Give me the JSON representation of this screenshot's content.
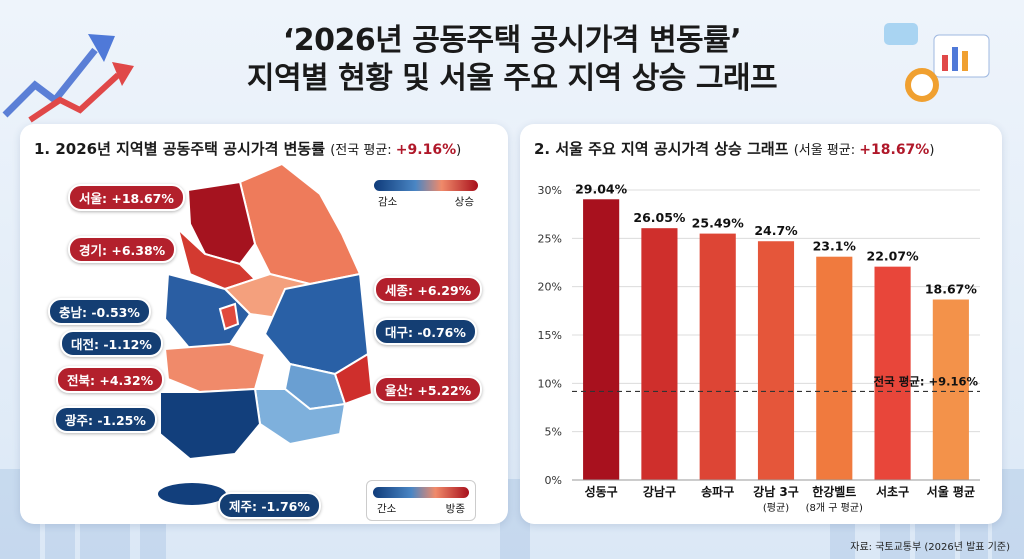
{
  "title": {
    "line1": "‘2026년 공동주택 공시가격 변동률’",
    "line2": "지역별 현황 및 서울 주요 지역 상승 그래프"
  },
  "left_panel": {
    "heading": "1. 2026년 지역별 공동주택 공시가격 변동률",
    "avg_prefix": "(전국 평균: ",
    "avg_value": "+9.16%",
    "avg_suffix": ")",
    "legend_top": {
      "low": "감소",
      "high": "상승"
    },
    "legend_bottom": {
      "low": "간소",
      "high": "방종"
    },
    "regions": [
      {
        "name": "서울",
        "label": "서울: +18.67%",
        "value": 18.67
      },
      {
        "name": "경기",
        "label": "경기: +6.38%",
        "value": 6.38
      },
      {
        "name": "충남",
        "label": "충남: -0.53%",
        "value": -0.53
      },
      {
        "name": "대전",
        "label": "대전: -1.12%",
        "value": -1.12
      },
      {
        "name": "전북",
        "label": "전북: +4.32%",
        "value": 4.32
      },
      {
        "name": "광주",
        "label": "광주: -1.25%",
        "value": -1.25
      },
      {
        "name": "세종",
        "label": "세종: +6.29%",
        "value": 6.29
      },
      {
        "name": "대구",
        "label": "대구: -0.76%",
        "value": -0.76
      },
      {
        "name": "울산",
        "label": "울산: +5.22%",
        "value": 5.22
      },
      {
        "name": "제주",
        "label": "제주: -1.76%",
        "value": -1.76
      }
    ]
  },
  "right_panel": {
    "heading": "2. 서울 주요 지역 공시가격 상승 그래프",
    "avg_prefix": "(서울 평균: ",
    "avg_value": "+18.67%",
    "avg_suffix": ")"
  },
  "chart_data": {
    "type": "bar",
    "categories": [
      "성동구",
      "강남구",
      "송파구",
      "강남 3구",
      "한강벨트",
      "서초구",
      "서울 평균"
    ],
    "category_sublabels": [
      "",
      "",
      "",
      "(평균)",
      "(8개 구 평균)",
      "",
      ""
    ],
    "values": [
      29.04,
      26.05,
      25.49,
      24.7,
      23.1,
      22.07,
      18.67
    ],
    "value_labels": [
      "29.04%",
      "26.05%",
      "25.49%",
      "24.7%",
      "23.1%",
      "22.07%",
      "18.67%"
    ],
    "bar_colors": [
      "#a8111e",
      "#cf2f2c",
      "#dd4535",
      "#e5563a",
      "#f07a3e",
      "#e8463a",
      "#f3924a"
    ],
    "ylim": [
      0,
      30
    ],
    "yticks": [
      "0%",
      "5%",
      "10%",
      "15%",
      "20%",
      "25%",
      "30%"
    ],
    "reference_line": {
      "value": 9.16,
      "label": "전국 평균: +9.16%"
    },
    "grid": true
  },
  "source": "자료: 국토교통부 (2026년 발표 기준)"
}
